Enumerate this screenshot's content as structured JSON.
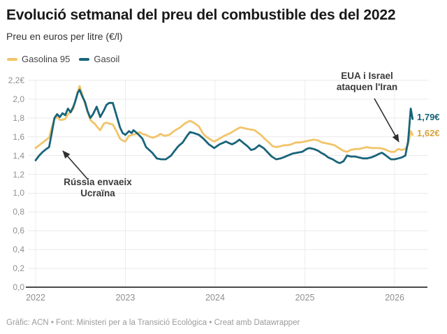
{
  "header": {
    "title": "Evolució setmanal del preu del combustible des del 2022",
    "subtitle": "Preu en euros per litre (€/l)"
  },
  "colors": {
    "gasolina": "#F2C469",
    "gasoil": "#18647A",
    "gasolina_label": "#DCA43C",
    "grid": "#e9e9e9",
    "baseline": "#4a4a4a",
    "annotation": "#3b3b3b"
  },
  "legend": {
    "items": [
      {
        "label": "Gasolina 95",
        "color": "#F2C469"
      },
      {
        "label": "Gasoil",
        "color": "#18647A"
      }
    ]
  },
  "annotations": {
    "russia": {
      "text": "Rússia envaeix\nUcraïna"
    },
    "iran": {
      "text": "EUA i Israel\nataquen l'Iran"
    }
  },
  "end_labels": {
    "gasoil": "1,79€",
    "gasolina": "1,62€"
  },
  "footer": {
    "text": "Gràfic: ACN • Font: Ministeri per a la Transició Ecològica • Creat amb Datawrapper"
  },
  "chart_data": {
    "type": "line",
    "title": "Evolució setmanal del preu del combustible des del 2022",
    "ylabel": "Preu en euros per litre (€/l)",
    "xlim": [
      2022,
      2026.35
    ],
    "ylim": [
      0,
      2.2
    ],
    "grid": true,
    "legend_position": "top-left",
    "x_axis": {
      "ticks": [
        {
          "v": 2022,
          "label": "2022"
        },
        {
          "v": 2023,
          "label": "2023"
        },
        {
          "v": 2024,
          "label": "2024"
        },
        {
          "v": 2025,
          "label": "2025"
        },
        {
          "v": 2026,
          "label": "2026"
        }
      ]
    },
    "y_axis": {
      "ticks": [
        {
          "v": 2.2,
          "label": "2,2€"
        },
        {
          "v": 2.0,
          "label": "2,0"
        },
        {
          "v": 1.8,
          "label": "1,8"
        },
        {
          "v": 1.6,
          "label": "1,6"
        },
        {
          "v": 1.4,
          "label": "1,4"
        },
        {
          "v": 1.2,
          "label": "1,2"
        },
        {
          "v": 1.0,
          "label": "1,0"
        },
        {
          "v": 0.8,
          "label": "0,8"
        },
        {
          "v": 0.6,
          "label": "0,6"
        },
        {
          "v": 0.4,
          "label": "0,4"
        },
        {
          "v": 0.2,
          "label": "0,2"
        },
        {
          "v": 0.0,
          "label": "0,0"
        }
      ]
    },
    "series": [
      {
        "name": "Gasolina 95",
        "color": "#F2C469",
        "final_value_label": "1,62€",
        "points": [
          [
            2022.0,
            1.48
          ],
          [
            2022.04,
            1.51
          ],
          [
            2022.08,
            1.54
          ],
          [
            2022.12,
            1.57
          ],
          [
            2022.15,
            1.59
          ],
          [
            2022.18,
            1.7
          ],
          [
            2022.21,
            1.79
          ],
          [
            2022.24,
            1.81
          ],
          [
            2022.27,
            1.78
          ],
          [
            2022.3,
            1.78
          ],
          [
            2022.33,
            1.79
          ],
          [
            2022.36,
            1.84
          ],
          [
            2022.39,
            1.86
          ],
          [
            2022.42,
            1.9
          ],
          [
            2022.44,
            1.97
          ],
          [
            2022.47,
            2.08
          ],
          [
            2022.49,
            2.14
          ],
          [
            2022.52,
            2.05
          ],
          [
            2022.55,
            1.95
          ],
          [
            2022.58,
            1.86
          ],
          [
            2022.61,
            1.78
          ],
          [
            2022.64,
            1.75
          ],
          [
            2022.66,
            1.74
          ],
          [
            2022.68,
            1.71
          ],
          [
            2022.72,
            1.67
          ],
          [
            2022.76,
            1.74
          ],
          [
            2022.79,
            1.75
          ],
          [
            2022.82,
            1.74
          ],
          [
            2022.86,
            1.73
          ],
          [
            2022.9,
            1.66
          ],
          [
            2022.94,
            1.58
          ],
          [
            2022.97,
            1.56
          ],
          [
            2023.0,
            1.55
          ],
          [
            2023.04,
            1.61
          ],
          [
            2023.08,
            1.62
          ],
          [
            2023.12,
            1.63
          ],
          [
            2023.16,
            1.65
          ],
          [
            2023.19,
            1.63
          ],
          [
            2023.23,
            1.62
          ],
          [
            2023.27,
            1.6
          ],
          [
            2023.31,
            1.59
          ],
          [
            2023.36,
            1.61
          ],
          [
            2023.39,
            1.63
          ],
          [
            2023.44,
            1.61
          ],
          [
            2023.49,
            1.62
          ],
          [
            2023.54,
            1.66
          ],
          [
            2023.61,
            1.7
          ],
          [
            2023.66,
            1.74
          ],
          [
            2023.72,
            1.77
          ],
          [
            2023.76,
            1.75
          ],
          [
            2023.82,
            1.71
          ],
          [
            2023.86,
            1.64
          ],
          [
            2023.9,
            1.6
          ],
          [
            2023.95,
            1.57
          ],
          [
            2023.99,
            1.55
          ],
          [
            2024.05,
            1.58
          ],
          [
            2024.1,
            1.61
          ],
          [
            2024.15,
            1.63
          ],
          [
            2024.19,
            1.65
          ],
          [
            2024.24,
            1.68
          ],
          [
            2024.28,
            1.7
          ],
          [
            2024.33,
            1.69
          ],
          [
            2024.38,
            1.68
          ],
          [
            2024.44,
            1.67
          ],
          [
            2024.48,
            1.64
          ],
          [
            2024.51,
            1.62
          ],
          [
            2024.55,
            1.58
          ],
          [
            2024.6,
            1.54
          ],
          [
            2024.64,
            1.5
          ],
          [
            2024.68,
            1.49
          ],
          [
            2024.73,
            1.5
          ],
          [
            2024.77,
            1.51
          ],
          [
            2024.81,
            1.51
          ],
          [
            2024.85,
            1.52
          ],
          [
            2024.9,
            1.54
          ],
          [
            2024.95,
            1.54
          ],
          [
            2025.0,
            1.55
          ],
          [
            2025.05,
            1.56
          ],
          [
            2025.1,
            1.57
          ],
          [
            2025.15,
            1.56
          ],
          [
            2025.19,
            1.54
          ],
          [
            2025.24,
            1.53
          ],
          [
            2025.29,
            1.52
          ],
          [
            2025.33,
            1.51
          ],
          [
            2025.38,
            1.48
          ],
          [
            2025.43,
            1.45
          ],
          [
            2025.47,
            1.44
          ],
          [
            2025.51,
            1.46
          ],
          [
            2025.56,
            1.47
          ],
          [
            2025.6,
            1.47
          ],
          [
            2025.65,
            1.48
          ],
          [
            2025.69,
            1.49
          ],
          [
            2025.74,
            1.48
          ],
          [
            2025.79,
            1.48
          ],
          [
            2025.83,
            1.48
          ],
          [
            2025.88,
            1.47
          ],
          [
            2025.93,
            1.45
          ],
          [
            2025.96,
            1.44
          ],
          [
            2026.0,
            1.44
          ],
          [
            2026.04,
            1.47
          ],
          [
            2026.08,
            1.46
          ],
          [
            2026.12,
            1.47
          ],
          [
            2026.15,
            1.52
          ],
          [
            2026.18,
            1.66
          ],
          [
            2026.2,
            1.62
          ]
        ]
      },
      {
        "name": "Gasoil",
        "color": "#18647A",
        "final_value_label": "1,79€",
        "points": [
          [
            2022.0,
            1.35
          ],
          [
            2022.04,
            1.4
          ],
          [
            2022.08,
            1.44
          ],
          [
            2022.12,
            1.47
          ],
          [
            2022.15,
            1.49
          ],
          [
            2022.18,
            1.64
          ],
          [
            2022.21,
            1.8
          ],
          [
            2022.24,
            1.84
          ],
          [
            2022.27,
            1.81
          ],
          [
            2022.3,
            1.85
          ],
          [
            2022.33,
            1.83
          ],
          [
            2022.36,
            1.9
          ],
          [
            2022.39,
            1.86
          ],
          [
            2022.42,
            1.92
          ],
          [
            2022.44,
            1.97
          ],
          [
            2022.47,
            2.07
          ],
          [
            2022.49,
            2.1
          ],
          [
            2022.52,
            2.03
          ],
          [
            2022.55,
            1.97
          ],
          [
            2022.58,
            1.87
          ],
          [
            2022.61,
            1.8
          ],
          [
            2022.64,
            1.84
          ],
          [
            2022.66,
            1.88
          ],
          [
            2022.68,
            1.92
          ],
          [
            2022.72,
            1.81
          ],
          [
            2022.76,
            1.88
          ],
          [
            2022.79,
            1.94
          ],
          [
            2022.82,
            1.96
          ],
          [
            2022.86,
            1.96
          ],
          [
            2022.9,
            1.83
          ],
          [
            2022.94,
            1.7
          ],
          [
            2022.97,
            1.64
          ],
          [
            2023.0,
            1.62
          ],
          [
            2023.04,
            1.66
          ],
          [
            2023.07,
            1.64
          ],
          [
            2023.09,
            1.67
          ],
          [
            2023.14,
            1.63
          ],
          [
            2023.19,
            1.58
          ],
          [
            2023.23,
            1.49
          ],
          [
            2023.3,
            1.43
          ],
          [
            2023.35,
            1.37
          ],
          [
            2023.4,
            1.36
          ],
          [
            2023.45,
            1.36
          ],
          [
            2023.51,
            1.4
          ],
          [
            2023.54,
            1.44
          ],
          [
            2023.59,
            1.5
          ],
          [
            2023.64,
            1.54
          ],
          [
            2023.68,
            1.6
          ],
          [
            2023.72,
            1.65
          ],
          [
            2023.76,
            1.64
          ],
          [
            2023.82,
            1.62
          ],
          [
            2023.87,
            1.58
          ],
          [
            2023.93,
            1.52
          ],
          [
            2023.99,
            1.48
          ],
          [
            2024.05,
            1.52
          ],
          [
            2024.1,
            1.54
          ],
          [
            2024.12,
            1.55
          ],
          [
            2024.16,
            1.53
          ],
          [
            2024.19,
            1.52
          ],
          [
            2024.23,
            1.54
          ],
          [
            2024.27,
            1.57
          ],
          [
            2024.32,
            1.53
          ],
          [
            2024.36,
            1.5
          ],
          [
            2024.4,
            1.46
          ],
          [
            2024.44,
            1.47
          ],
          [
            2024.49,
            1.51
          ],
          [
            2024.54,
            1.48
          ],
          [
            2024.59,
            1.43
          ],
          [
            2024.63,
            1.39
          ],
          [
            2024.68,
            1.36
          ],
          [
            2024.73,
            1.37
          ],
          [
            2024.76,
            1.38
          ],
          [
            2024.81,
            1.4
          ],
          [
            2024.86,
            1.42
          ],
          [
            2024.91,
            1.43
          ],
          [
            2024.97,
            1.44
          ],
          [
            2025.02,
            1.47
          ],
          [
            2025.05,
            1.48
          ],
          [
            2025.1,
            1.47
          ],
          [
            2025.15,
            1.45
          ],
          [
            2025.18,
            1.43
          ],
          [
            2025.22,
            1.41
          ],
          [
            2025.26,
            1.38
          ],
          [
            2025.31,
            1.36
          ],
          [
            2025.36,
            1.33
          ],
          [
            2025.39,
            1.32
          ],
          [
            2025.43,
            1.34
          ],
          [
            2025.47,
            1.4
          ],
          [
            2025.51,
            1.39
          ],
          [
            2025.56,
            1.39
          ],
          [
            2025.6,
            1.38
          ],
          [
            2025.65,
            1.37
          ],
          [
            2025.69,
            1.37
          ],
          [
            2025.74,
            1.38
          ],
          [
            2025.79,
            1.4
          ],
          [
            2025.83,
            1.42
          ],
          [
            2025.86,
            1.43
          ],
          [
            2025.89,
            1.41
          ],
          [
            2025.93,
            1.38
          ],
          [
            2025.96,
            1.36
          ],
          [
            2026.0,
            1.36
          ],
          [
            2026.04,
            1.37
          ],
          [
            2026.08,
            1.38
          ],
          [
            2026.12,
            1.4
          ],
          [
            2026.15,
            1.55
          ],
          [
            2026.18,
            1.9
          ],
          [
            2026.2,
            1.79
          ]
        ]
      }
    ]
  }
}
